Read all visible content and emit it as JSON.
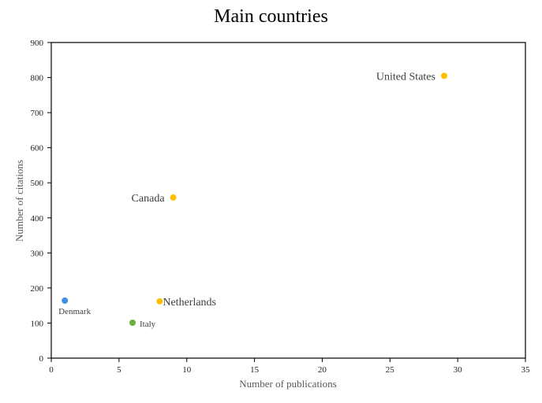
{
  "chart_data": {
    "type": "scatter",
    "title": "Main countries",
    "xlabel": "Number of publications",
    "ylabel": "Number of citations",
    "xlim": [
      0,
      35
    ],
    "ylim": [
      0,
      900
    ],
    "xticks": [
      0,
      5,
      10,
      15,
      20,
      25,
      30,
      35
    ],
    "yticks": [
      0,
      100,
      200,
      300,
      400,
      500,
      600,
      700,
      800,
      900
    ],
    "grid": false,
    "legend": null,
    "points": [
      {
        "label": "United States",
        "x": 29,
        "y": 805,
        "color": "#FFC000",
        "label_pos": "left",
        "label_size": 14
      },
      {
        "label": "Canada",
        "x": 9,
        "y": 458,
        "color": "#FFC000",
        "label_pos": "left",
        "label_size": 14
      },
      {
        "label": "Netherlands",
        "x": 8,
        "y": 162,
        "color": "#FFC000",
        "label_pos": "right",
        "label_size": 14
      },
      {
        "label": "Denmark",
        "x": 1,
        "y": 164,
        "color": "#3C8FE6",
        "label_pos": "below",
        "label_size": 11
      },
      {
        "label": "Italy",
        "x": 6,
        "y": 101,
        "color": "#6AAE3E",
        "label_pos": "right",
        "label_size": 11
      }
    ]
  }
}
